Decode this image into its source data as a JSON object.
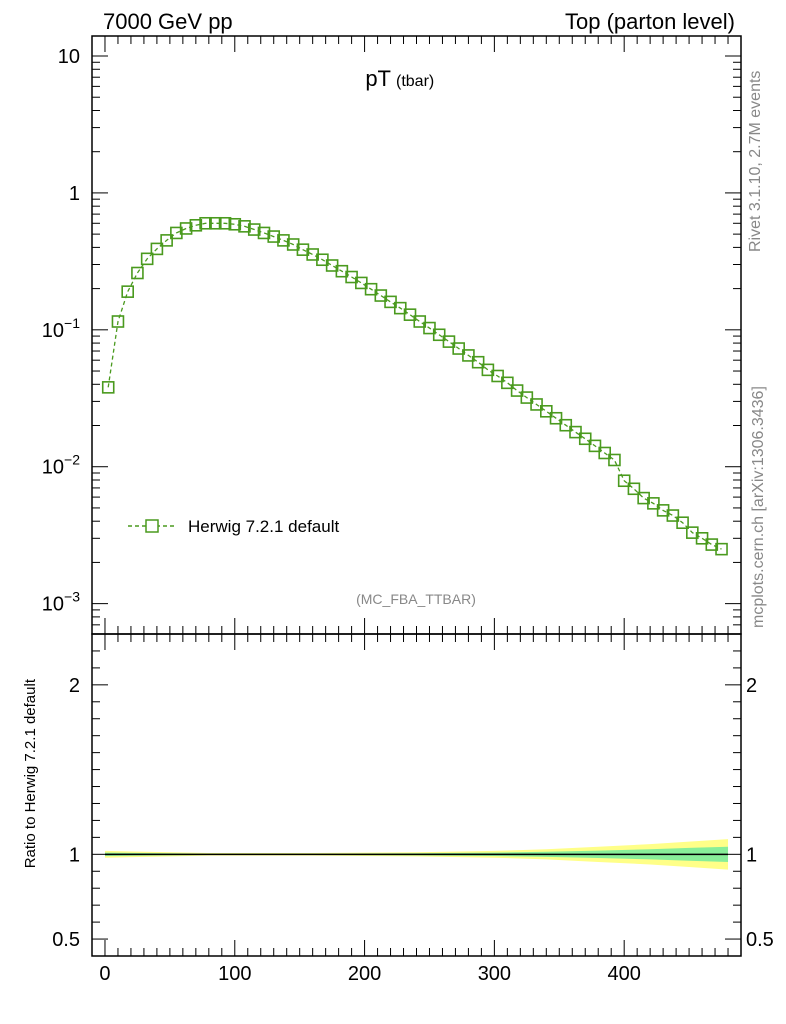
{
  "header": {
    "left": "7000 GeV pp",
    "right": "Top (parton level)"
  },
  "side": {
    "rivet": "Rivet 3.1.10,  2.7M events",
    "mcplots": "mcplots.cern.ch [arXiv:1306.3436]"
  },
  "colors": {
    "series": "#4a9a1e",
    "band_outer": "#ffff88",
    "band_inner": "#88ee99",
    "axis": "#000000",
    "grey_text": "#888888"
  },
  "chart_data": [
    {
      "type": "line",
      "panel": "main",
      "title": "pT",
      "title_sub": "(tbar)",
      "analysis_tag": "(MC_FBA_TTBAR)",
      "xlabel": "",
      "ylabel": "",
      "x_range": [
        -10,
        490
      ],
      "y_scale": "log",
      "y_range": [
        0.0006,
        14
      ],
      "y_ticks": [
        {
          "value": 0.001,
          "base": "10",
          "exp": "−3"
        },
        {
          "value": 0.01,
          "base": "10",
          "exp": "−2"
        },
        {
          "value": 0.1,
          "base": "10",
          "exp": "−1"
        },
        {
          "value": 1,
          "base": "1",
          "exp": ""
        },
        {
          "value": 10,
          "base": "10",
          "exp": ""
        }
      ],
      "legend": {
        "label": "Herwig 7.2.1 default",
        "placement": "left-middle"
      },
      "series": [
        {
          "name": "Herwig 7.2.1 default",
          "marker": "open-square",
          "line": "dashed",
          "x": [
            2.5,
            10,
            17.5,
            25,
            32.5,
            40,
            47.5,
            55,
            62.5,
            70,
            77.5,
            85,
            92.5,
            100,
            107.5,
            115,
            122.5,
            130,
            137.5,
            145,
            152.5,
            160,
            167.5,
            175,
            182.5,
            190,
            197.5,
            205,
            212.5,
            220,
            227.5,
            235,
            242.5,
            250,
            257.5,
            265,
            272.5,
            280,
            287.5,
            295,
            302.5,
            310,
            317.5,
            325,
            332.5,
            340,
            347.5,
            355,
            362.5,
            370,
            377.5,
            385,
            392.5,
            400,
            407.5,
            415,
            422.5,
            430,
            437.5,
            445,
            452.5,
            460,
            467.5,
            475
          ],
          "y": [
            0.038,
            0.115,
            0.19,
            0.26,
            0.33,
            0.39,
            0.45,
            0.51,
            0.55,
            0.58,
            0.6,
            0.6,
            0.6,
            0.59,
            0.57,
            0.54,
            0.51,
            0.48,
            0.45,
            0.42,
            0.385,
            0.355,
            0.325,
            0.295,
            0.268,
            0.243,
            0.22,
            0.198,
            0.178,
            0.16,
            0.144,
            0.129,
            0.115,
            0.103,
            0.092,
            0.082,
            0.073,
            0.065,
            0.058,
            0.051,
            0.046,
            0.041,
            0.036,
            0.032,
            0.0285,
            0.0254,
            0.0226,
            0.0201,
            0.0179,
            0.016,
            0.0142,
            0.0126,
            0.0112,
            0.0079,
            0.0069,
            0.0059,
            0.0054,
            0.0048,
            0.0044,
            0.0039,
            0.0033,
            0.003,
            0.0027,
            0.0025
          ]
        }
      ]
    },
    {
      "type": "line",
      "panel": "ratio",
      "ylabel": "Ratio to Herwig 7.2.1 default",
      "x_range": [
        -10,
        490
      ],
      "y_range": [
        0.4,
        2.3
      ],
      "y_ticks": [
        {
          "value": 0.5,
          "label": "0.5"
        },
        {
          "value": 1,
          "label": "1"
        },
        {
          "value": 2,
          "label": "2"
        }
      ],
      "x_ticks": [
        {
          "value": 0,
          "label": "0"
        },
        {
          "value": 100,
          "label": "100"
        },
        {
          "value": 200,
          "label": "200"
        },
        {
          "value": 300,
          "label": "300"
        },
        {
          "value": 400,
          "label": "400"
        }
      ],
      "reference": 1,
      "band_x": [
        0,
        80,
        160,
        240,
        300,
        340,
        380,
        420,
        450,
        480
      ],
      "band_outer": [
        0.02,
        0.008,
        0.008,
        0.012,
        0.02,
        0.03,
        0.045,
        0.06,
        0.075,
        0.09
      ],
      "band_inner": [
        0.01,
        0.004,
        0.004,
        0.006,
        0.01,
        0.015,
        0.022,
        0.03,
        0.038,
        0.045
      ]
    }
  ]
}
